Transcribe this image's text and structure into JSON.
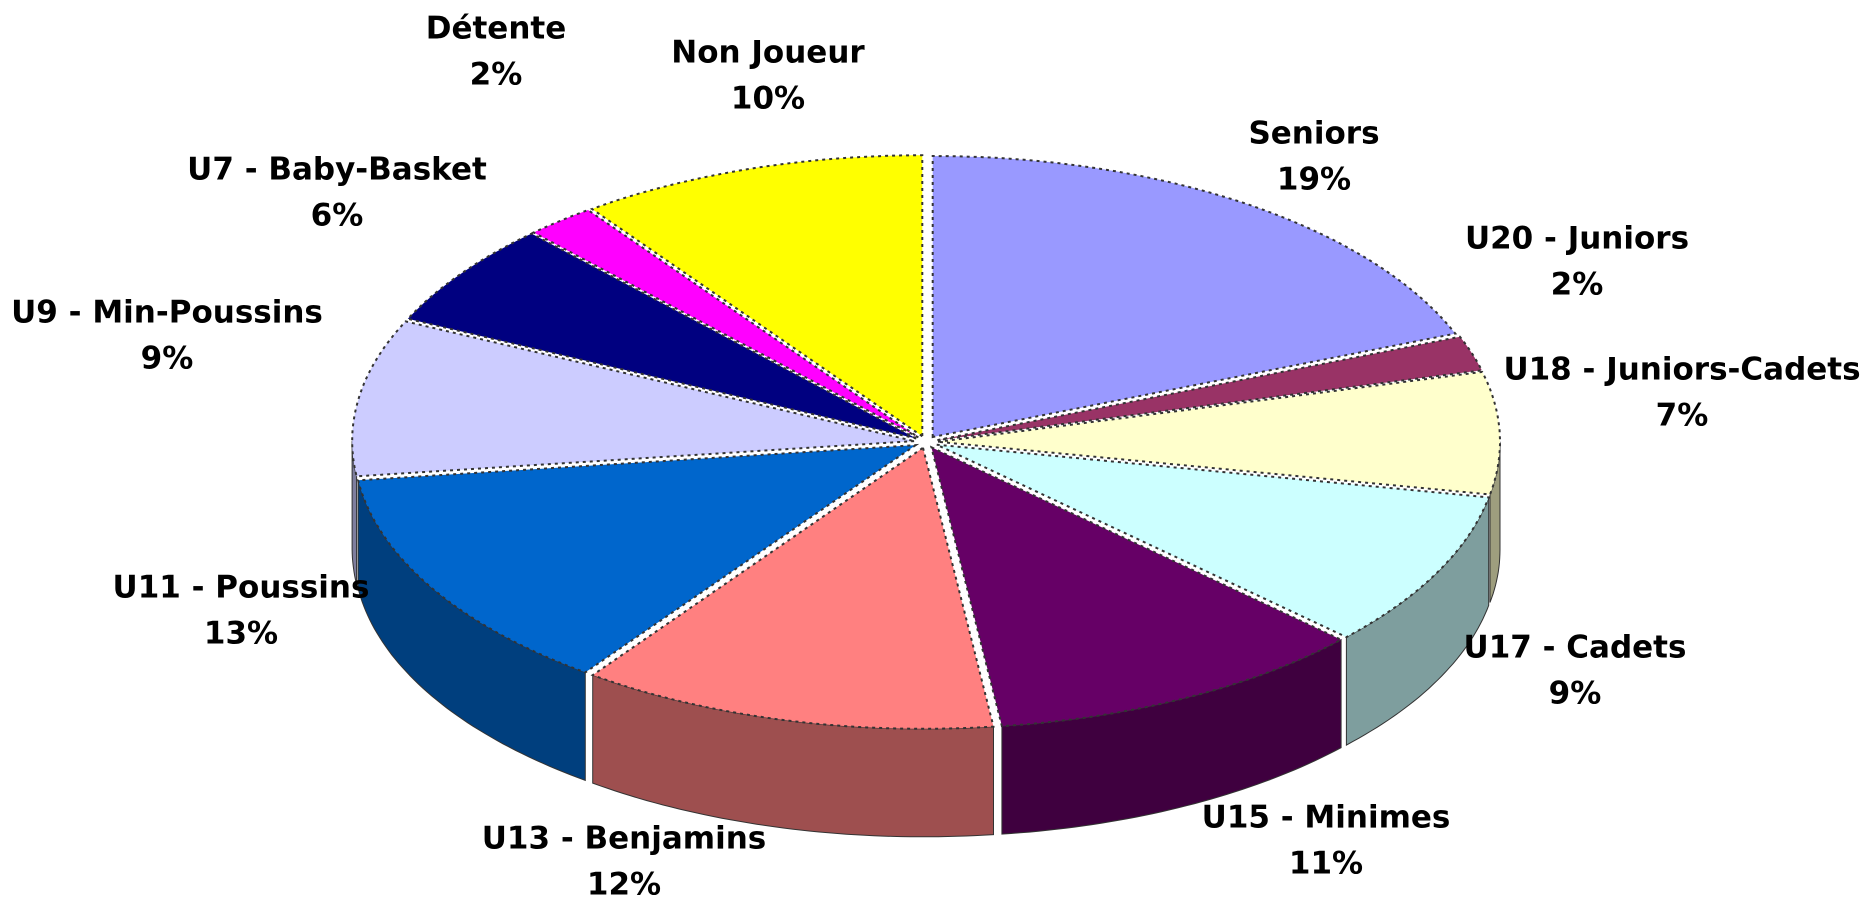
{
  "chart_data": {
    "type": "pie",
    "categories": [
      "Seniors",
      "U20 - Juniors",
      "U18 - Juniors-Cadets",
      "U17 - Cadets",
      "U15 - Minimes",
      "U13 - Benjamins",
      "U11 - Poussins",
      "U9 - Min-Poussins",
      "U7 - Baby-Basket",
      "Détente",
      "Non Joueur"
    ],
    "values": [
      19,
      2,
      7,
      9,
      11,
      12,
      13,
      9,
      6,
      2,
      10
    ],
    "value_labels": [
      "19%",
      "2%",
      "7%",
      "9%",
      "11%",
      "12%",
      "13%",
      "9%",
      "6%",
      "2%",
      "10%"
    ],
    "colors": [
      "#9999ff",
      "#993366",
      "#ffffcc",
      "#ccffff",
      "#660066",
      "#ff8080",
      "#0066cc",
      "#ccccff",
      "#000080",
      "#ff00ff",
      "#ffff00"
    ]
  }
}
